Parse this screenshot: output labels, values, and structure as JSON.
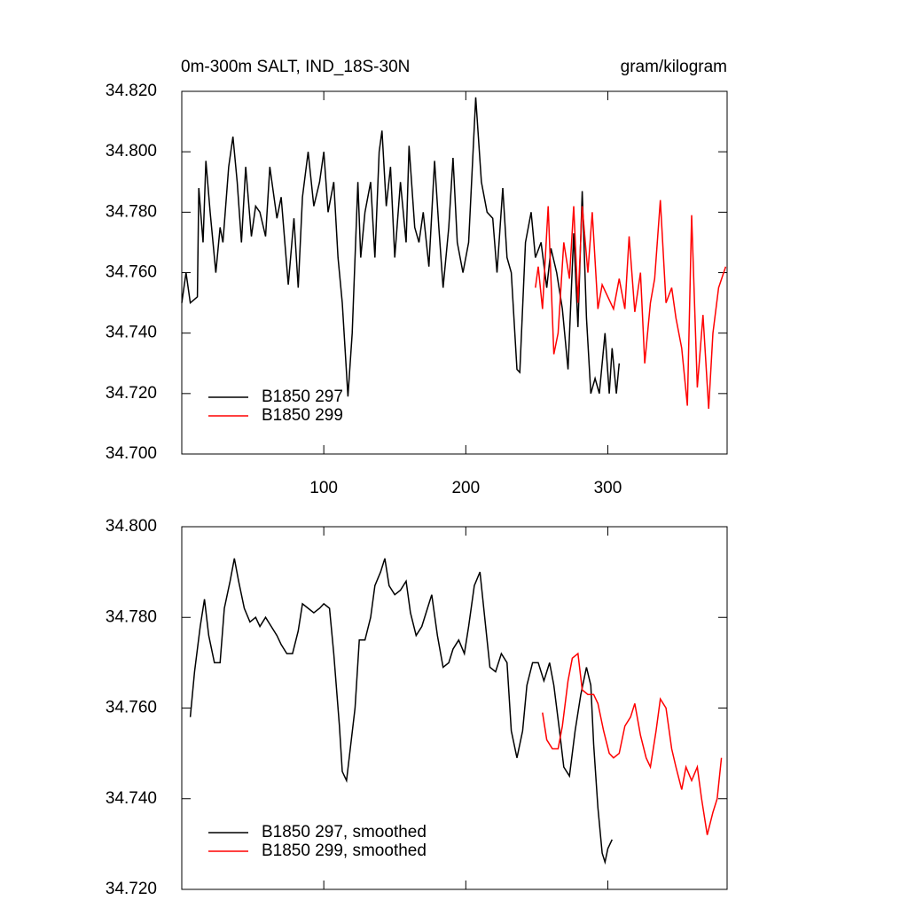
{
  "chart_data": [
    {
      "type": "line",
      "title": "0m-300m SALT, IND_18S-30N",
      "units": "gram/kilogram",
      "xlim": [
        0,
        384
      ],
      "xticks": [
        100,
        200,
        300
      ],
      "xtick_labels": true,
      "ylim": [
        34.7,
        34.82
      ],
      "yticks": [
        {
          "value": 34.7,
          "label": "34.700"
        },
        {
          "value": 34.72,
          "label": "34.720"
        },
        {
          "value": 34.74,
          "label": "34.740"
        },
        {
          "value": 34.76,
          "label": "34.760"
        },
        {
          "value": 34.78,
          "label": "34.780"
        },
        {
          "value": 34.8,
          "label": "34.800"
        },
        {
          "value": 34.82,
          "label": "34.820"
        }
      ],
      "legend": "lower left",
      "series": [
        {
          "name": "B1850 297",
          "color": "#000000",
          "x": [
            0,
            3,
            6,
            11,
            12,
            15,
            17,
            20,
            24,
            27,
            29,
            33,
            36,
            39,
            42,
            45,
            49,
            52,
            55,
            59,
            62,
            67,
            70,
            75,
            79,
            82,
            85,
            89,
            93,
            97,
            100,
            103,
            107,
            110,
            113,
            117,
            120,
            124,
            126,
            129,
            133,
            136,
            139,
            141,
            144,
            147,
            150,
            154,
            158,
            160,
            164,
            167,
            170,
            174,
            178,
            181,
            184,
            188,
            191,
            194,
            198,
            202,
            207,
            211,
            215,
            219,
            222,
            226,
            229,
            232,
            236,
            238,
            242,
            246,
            249,
            253,
            257,
            260,
            264,
            268,
            272,
            276,
            279,
            282,
            285,
            288,
            291,
            294,
            298,
            301,
            303,
            306,
            308
          ],
          "values": [
            34.75,
            34.76,
            34.75,
            34.752,
            34.788,
            34.77,
            34.797,
            34.78,
            34.76,
            34.775,
            34.77,
            34.795,
            34.805,
            34.79,
            34.77,
            34.795,
            34.772,
            34.782,
            34.78,
            34.772,
            34.795,
            34.778,
            34.785,
            34.756,
            34.778,
            34.755,
            34.785,
            34.8,
            34.782,
            34.79,
            34.8,
            34.78,
            34.79,
            34.765,
            34.75,
            34.719,
            34.74,
            34.79,
            34.765,
            34.78,
            34.79,
            34.765,
            34.8,
            34.807,
            34.782,
            34.795,
            34.765,
            34.79,
            34.77,
            34.802,
            34.775,
            34.77,
            34.78,
            34.762,
            34.797,
            34.775,
            34.755,
            34.775,
            34.798,
            34.77,
            34.76,
            34.77,
            34.818,
            34.79,
            34.78,
            34.778,
            34.76,
            34.788,
            34.765,
            34.76,
            34.728,
            34.727,
            34.77,
            34.78,
            34.765,
            34.77,
            34.755,
            34.768,
            34.76,
            34.748,
            34.728,
            34.773,
            34.742,
            34.787,
            34.745,
            34.72,
            34.725,
            34.72,
            34.74,
            34.72,
            34.735,
            34.72,
            34.73
          ]
        },
        {
          "name": "B1850 299",
          "color": "#ff0000",
          "x": [
            249,
            251,
            254,
            258,
            262,
            265,
            269,
            273,
            276,
            279,
            282,
            286,
            289,
            293,
            296,
            300,
            304,
            308,
            312,
            315,
            319,
            323,
            326,
            330,
            333,
            337,
            341,
            345,
            348,
            352,
            356,
            359,
            363,
            367,
            371,
            374,
            378,
            383
          ],
          "values": [
            34.755,
            34.762,
            34.748,
            34.782,
            34.733,
            34.74,
            34.77,
            34.758,
            34.782,
            34.75,
            34.782,
            34.76,
            34.78,
            34.748,
            34.756,
            34.752,
            34.748,
            34.758,
            34.748,
            34.772,
            34.747,
            34.76,
            34.73,
            34.75,
            34.758,
            34.784,
            34.75,
            34.755,
            34.745,
            34.735,
            34.716,
            34.779,
            34.722,
            34.746,
            34.715,
            34.74,
            34.755,
            34.762
          ]
        }
      ]
    },
    {
      "type": "line",
      "xlim": [
        0,
        384
      ],
      "xticks": [
        100,
        200,
        300
      ],
      "xtick_labels": false,
      "ylim": [
        34.72,
        34.8
      ],
      "yticks": [
        {
          "value": 34.72,
          "label": "34.720"
        },
        {
          "value": 34.74,
          "label": "34.740"
        },
        {
          "value": 34.76,
          "label": "34.760"
        },
        {
          "value": 34.78,
          "label": "34.780"
        },
        {
          "value": 34.8,
          "label": "34.800"
        }
      ],
      "legend": "lower left",
      "series": [
        {
          "name": "B1850 297, smoothed",
          "color": "#000000",
          "x": [
            6,
            9,
            13,
            16,
            19,
            23,
            27,
            30,
            34,
            37,
            40,
            44,
            48,
            52,
            55,
            59,
            63,
            67,
            70,
            74,
            78,
            82,
            85,
            89,
            93,
            97,
            100,
            104,
            107,
            111,
            113,
            116,
            119,
            122,
            125,
            129,
            133,
            136,
            140,
            143,
            146,
            150,
            154,
            158,
            161,
            165,
            169,
            173,
            176,
            180,
            184,
            188,
            191,
            195,
            199,
            202,
            206,
            210,
            214,
            217,
            221,
            225,
            229,
            232,
            236,
            240,
            243,
            247,
            251,
            255,
            259,
            262,
            266,
            269,
            273,
            277,
            281,
            285,
            288,
            290,
            293,
            296,
            298,
            300,
            303
          ],
          "values": [
            34.758,
            34.768,
            34.778,
            34.784,
            34.776,
            34.77,
            34.77,
            34.782,
            34.788,
            34.793,
            34.788,
            34.782,
            34.779,
            34.78,
            34.778,
            34.78,
            34.778,
            34.776,
            34.774,
            34.772,
            34.772,
            34.777,
            34.783,
            34.782,
            34.781,
            34.782,
            34.783,
            34.782,
            34.772,
            34.756,
            34.746,
            34.744,
            34.752,
            34.76,
            34.775,
            34.775,
            34.78,
            34.787,
            34.79,
            34.793,
            34.787,
            34.785,
            34.786,
            34.788,
            34.781,
            34.776,
            34.778,
            34.782,
            34.785,
            34.776,
            34.769,
            34.77,
            34.773,
            34.775,
            34.772,
            34.778,
            34.787,
            34.79,
            34.778,
            34.769,
            34.768,
            34.772,
            34.77,
            34.755,
            34.749,
            34.755,
            34.765,
            34.77,
            34.77,
            34.766,
            34.77,
            34.765,
            34.755,
            34.747,
            34.745,
            34.755,
            34.763,
            34.769,
            34.765,
            34.752,
            34.738,
            34.728,
            34.726,
            34.729,
            34.731
          ]
        },
        {
          "name": "B1850 299, smoothed",
          "color": "#ff0000",
          "x": [
            254,
            257,
            261,
            265,
            268,
            272,
            275,
            279,
            282,
            286,
            290,
            293,
            297,
            301,
            304,
            308,
            312,
            316,
            319,
            323,
            327,
            330,
            334,
            337,
            341,
            345,
            348,
            352,
            355,
            359,
            363,
            366,
            370,
            374,
            377,
            380
          ],
          "values": [
            34.759,
            34.753,
            34.751,
            34.751,
            34.756,
            34.766,
            34.771,
            34.772,
            34.764,
            34.763,
            34.763,
            34.761,
            34.755,
            34.75,
            34.749,
            34.75,
            34.756,
            34.758,
            34.761,
            34.754,
            34.749,
            34.747,
            34.755,
            34.762,
            34.76,
            34.751,
            34.747,
            34.742,
            34.747,
            34.744,
            34.747,
            34.74,
            34.732,
            34.737,
            34.74,
            34.749
          ]
        }
      ]
    }
  ]
}
